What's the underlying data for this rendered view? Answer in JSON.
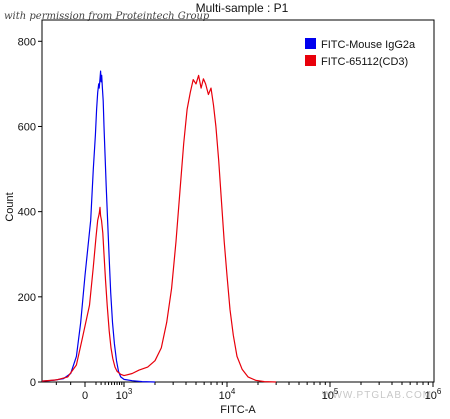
{
  "watermark": "with permission from Proteintech Group",
  "bottom_watermark": "WWW.PTGLAB.COM",
  "chart_data": {
    "type": "line",
    "title": "Multi-sample : P1",
    "xlabel": "FITC-A",
    "ylabel": "Count",
    "x_scale": "log",
    "xlim": [
      -300,
      1000000
    ],
    "ylim": [
      0,
      850
    ],
    "yticks": [
      0,
      200,
      400,
      600,
      800
    ],
    "xticks": [
      {
        "value": 0,
        "label": "0"
      },
      {
        "value": 1000,
        "label": "10",
        "sup": "3"
      },
      {
        "value": 10000,
        "label": "10",
        "sup": "4"
      },
      {
        "value": 100000,
        "label": "10",
        "sup": "5"
      },
      {
        "value": 1000000,
        "label": "10",
        "sup": "6"
      }
    ],
    "grid": false,
    "legend_position": "top-right",
    "series": [
      {
        "name": "FITC-Mouse IgG2a",
        "color": "#0000ee",
        "points": [
          [
            -300,
            2
          ],
          [
            -220,
            4
          ],
          [
            -150,
            8
          ],
          [
            -100,
            20
          ],
          [
            -60,
            60
          ],
          [
            -30,
            140
          ],
          [
            0,
            250
          ],
          [
            30,
            380
          ],
          [
            60,
            500
          ],
          [
            90,
            580
          ],
          [
            110,
            640
          ],
          [
            130,
            680
          ],
          [
            150,
            700
          ],
          [
            160,
            690
          ],
          [
            175,
            712
          ],
          [
            190,
            730
          ],
          [
            200,
            705
          ],
          [
            215,
            720
          ],
          [
            230,
            690
          ],
          [
            250,
            660
          ],
          [
            270,
            600
          ],
          [
            300,
            530
          ],
          [
            330,
            460
          ],
          [
            370,
            380
          ],
          [
            420,
            290
          ],
          [
            470,
            210
          ],
          [
            530,
            140
          ],
          [
            600,
            90
          ],
          [
            680,
            50
          ],
          [
            760,
            25
          ],
          [
            850,
            12
          ],
          [
            1000,
            6
          ],
          [
            1200,
            3
          ],
          [
            1500,
            1
          ],
          [
            2000,
            0
          ]
        ]
      },
      {
        "name": "FITC-65112(CD3)",
        "color": "#e8000b",
        "points": [
          [
            -300,
            2
          ],
          [
            -200,
            5
          ],
          [
            -120,
            12
          ],
          [
            -60,
            40
          ],
          [
            -20,
            100
          ],
          [
            20,
            180
          ],
          [
            60,
            270
          ],
          [
            100,
            340
          ],
          [
            130,
            380
          ],
          [
            160,
            395
          ],
          [
            175,
            410
          ],
          [
            190,
            390
          ],
          [
            210,
            380
          ],
          [
            240,
            350
          ],
          [
            270,
            300
          ],
          [
            310,
            240
          ],
          [
            360,
            180
          ],
          [
            420,
            120
          ],
          [
            480,
            80
          ],
          [
            540,
            55
          ],
          [
            620,
            35
          ],
          [
            700,
            25
          ],
          [
            850,
            18
          ],
          [
            1000,
            15
          ],
          [
            1200,
            20
          ],
          [
            1400,
            28
          ],
          [
            1700,
            35
          ],
          [
            2000,
            50
          ],
          [
            2300,
            80
          ],
          [
            2600,
            140
          ],
          [
            2900,
            220
          ],
          [
            3200,
            330
          ],
          [
            3500,
            450
          ],
          [
            3800,
            560
          ],
          [
            4100,
            640
          ],
          [
            4400,
            680
          ],
          [
            4700,
            710
          ],
          [
            5000,
            700
          ],
          [
            5300,
            720
          ],
          [
            5600,
            690
          ],
          [
            5900,
            712
          ],
          [
            6200,
            700
          ],
          [
            6600,
            675
          ],
          [
            7000,
            690
          ],
          [
            7400,
            650
          ],
          [
            7800,
            600
          ],
          [
            8300,
            520
          ],
          [
            8800,
            430
          ],
          [
            9400,
            330
          ],
          [
            10000,
            250
          ],
          [
            10700,
            170
          ],
          [
            11500,
            110
          ],
          [
            12500,
            60
          ],
          [
            14000,
            30
          ],
          [
            16000,
            12
          ],
          [
            19000,
            4
          ],
          [
            23000,
            1
          ],
          [
            30000,
            0
          ]
        ]
      }
    ]
  }
}
